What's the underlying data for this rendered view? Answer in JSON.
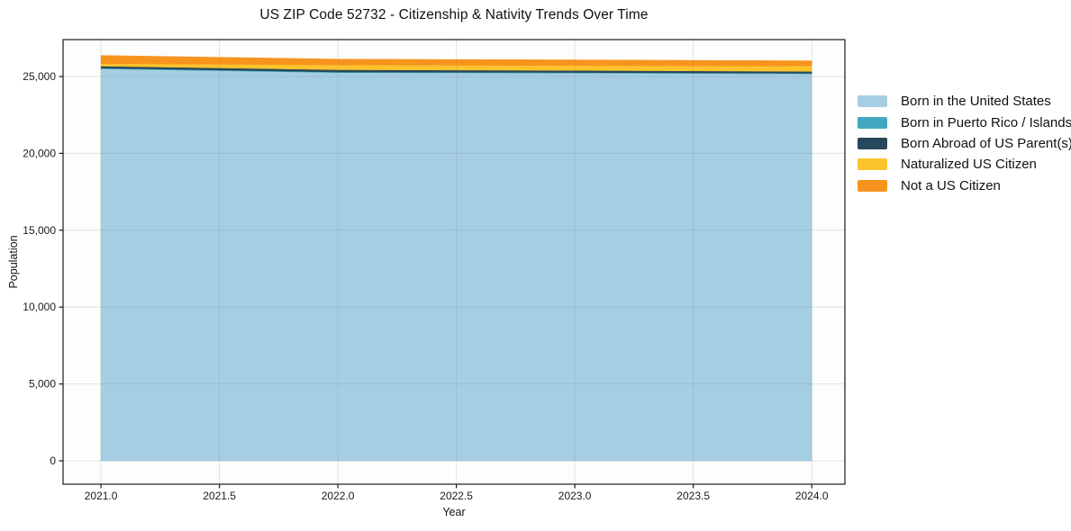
{
  "title": "US ZIP Code 52732 - Citizenship & Nativity Trends Over Time",
  "xlabel": "Year",
  "ylabel": "Population",
  "chart_data": {
    "type": "area",
    "stacked": true,
    "title": "US ZIP Code 52732 - Citizenship & Nativity Trends Over Time",
    "xlabel": "Year",
    "ylabel": "Population",
    "x": [
      2021,
      2022,
      2023,
      2024
    ],
    "series": [
      {
        "name": "Born in the United States",
        "color": "#a5cee3",
        "values": [
          25500,
          25250,
          25220,
          25170
        ]
      },
      {
        "name": "Born in Puerto Rico / Islands",
        "color": "#42a8bf",
        "values": [
          45,
          40,
          40,
          40
        ]
      },
      {
        "name": "Born Abroad of US Parent(s)",
        "color": "#27485a",
        "values": [
          130,
          150,
          135,
          120
        ]
      },
      {
        "name": "Naturalized US Citizen",
        "color": "#fcc32d",
        "values": [
          165,
          310,
          315,
          350
        ]
      },
      {
        "name": "Not a US Citizen",
        "color": "#f7941e",
        "values": [
          530,
          380,
          370,
          340
        ]
      }
    ],
    "totals": [
      26370,
      26130,
      26080,
      26020
    ],
    "xticks": [
      2021.0,
      2021.5,
      2022.0,
      2022.5,
      2023.0,
      2023.5,
      2024.0
    ],
    "xtick_labels": [
      "2021.0",
      "2021.5",
      "2022.0",
      "2022.5",
      "2023.0",
      "2023.5",
      "2024.0"
    ],
    "yticks": [
      0,
      5000,
      10000,
      15000,
      20000,
      25000
    ],
    "ytick_labels": [
      "0",
      "5,000",
      "10,000",
      "15,000",
      "20,000",
      "25,000"
    ],
    "xlim": [
      2020.84,
      2024.14
    ],
    "ylim": [
      -1520,
      27400
    ],
    "grid": true,
    "legend_position": "outside-right",
    "colors": {
      "spine": "#1a1a1a",
      "tick_label": "#1a1a1a",
      "grid": "rgba(130,130,130,0.22)",
      "plot_bg": "#fdfdfd",
      "figure_bg": "#ffffff"
    }
  }
}
